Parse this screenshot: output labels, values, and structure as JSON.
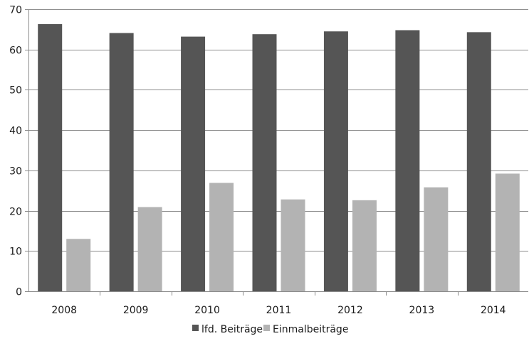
{
  "chart_data": {
    "type": "bar",
    "categories": [
      "2008",
      "2009",
      "2010",
      "2011",
      "2012",
      "2013",
      "2014"
    ],
    "series": [
      {
        "name": "lfd. Beiträge",
        "color": "#555555",
        "values": [
          66.3,
          64.1,
          63.2,
          63.8,
          64.5,
          64.8,
          64.3
        ]
      },
      {
        "name": "Einmalbeiträge",
        "color": "#b3b3b3",
        "values": [
          13.0,
          20.9,
          26.9,
          22.8,
          22.6,
          25.8,
          29.2
        ]
      }
    ],
    "ylim": [
      0,
      70
    ],
    "yticks": [
      "0",
      "10",
      "20",
      "30",
      "40",
      "50",
      "60",
      "70"
    ],
    "grid": true,
    "legend_position": "bottom-center"
  }
}
